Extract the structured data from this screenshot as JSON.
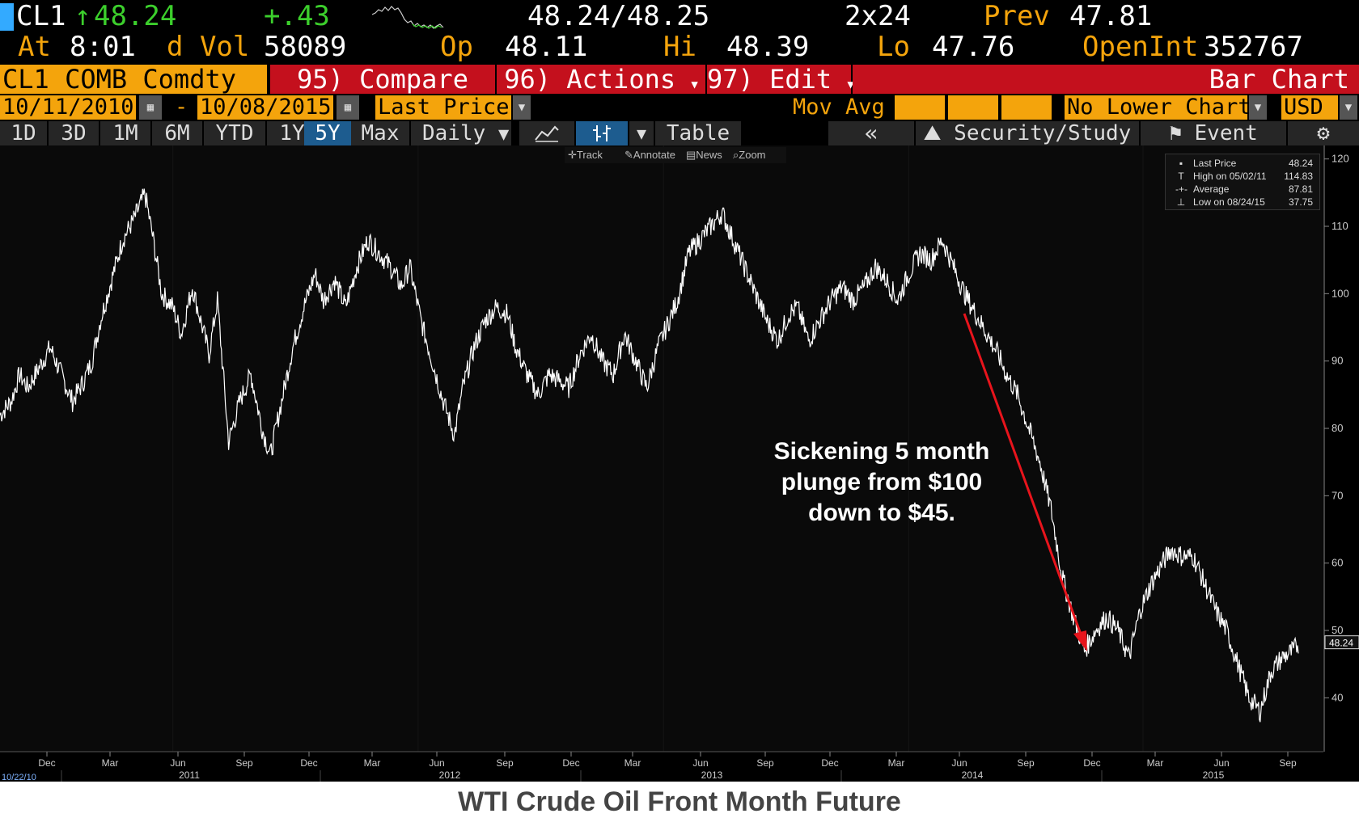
{
  "quote": {
    "ticker": "CL1",
    "arrow": "↑",
    "last": "48.24",
    "change": "+.43",
    "bid_ask": "48.24/48.25",
    "size": "2x24",
    "prev_label": "Prev",
    "prev": "47.81",
    "at_label": "At",
    "time": "8:01",
    "vol_label": "d Vol",
    "volume": "58089",
    "op_label": "Op",
    "open": "48.11",
    "hi_label": "Hi",
    "high": "48.39",
    "lo_label": "Lo",
    "low": "47.76",
    "oi_label": "OpenInt",
    "open_interest": "352767"
  },
  "menu": {
    "security": "CL1 COMB Comdty",
    "compare": "95) Compare",
    "actions": "96) Actions",
    "edit": "97) Edit",
    "chart_type": "Bar Chart"
  },
  "range": {
    "start": "10/11/2010",
    "dash": "-",
    "end": "10/08/2015",
    "field": "Last Price",
    "mov_avg": "Mov Avg",
    "lower_chart": "No Lower Chart",
    "currency": "USD"
  },
  "periods": [
    "1D",
    "3D",
    "1M",
    "6M",
    "YTD",
    "1Y",
    "5Y",
    "Max"
  ],
  "active_period": "5Y",
  "frequency": "Daily",
  "chart_tools": {
    "table": "Table",
    "back": "«",
    "security_study": "Security/Study",
    "event": "Event"
  },
  "toolbar": {
    "track": "Track",
    "annotate": "Annotate",
    "news": "News",
    "zoom": "Zoom"
  },
  "legend": [
    {
      "label": "Last Price",
      "value": "48.24"
    },
    {
      "label": "High on 05/02/11",
      "value": "114.83"
    },
    {
      "label": "Average",
      "value": "87.81"
    },
    {
      "label": "Low on 08/24/15",
      "value": "37.75"
    }
  ],
  "last_price_tag": "48.24",
  "start_date_label": "10/22/10",
  "annotation": [
    "Sickening 5 month",
    "plunge from $100",
    "down to $45."
  ],
  "footer_title": "WTI Crude Oil Front Month Future",
  "colors": {
    "amber": "#f4a40c",
    "red": "#c4101d",
    "green": "#3ccf2c",
    "arrow": "#e8141c"
  },
  "chart_data": {
    "type": "line",
    "ylim": [
      32,
      122
    ],
    "y_ticks": [
      40,
      50,
      60,
      70,
      80,
      90,
      100,
      110,
      120
    ],
    "month_ticks": [
      "Dec",
      "Mar",
      "Jun",
      "Sep",
      "Dec",
      "Mar",
      "Jun",
      "Sep",
      "Dec",
      "Mar",
      "Jun",
      "Sep",
      "Dec",
      "Mar",
      "Jun",
      "Sep",
      "Dec",
      "Mar",
      "Jun",
      "Sep"
    ],
    "year_ticks": [
      "2011",
      "2012",
      "2013",
      "2014",
      "2015"
    ],
    "series": [
      {
        "values": [
          [
            0,
            82
          ],
          [
            4,
            84
          ],
          [
            7,
            88
          ],
          [
            10,
            86
          ],
          [
            14,
            89
          ],
          [
            18,
            92
          ],
          [
            22,
            88
          ],
          [
            26,
            84
          ],
          [
            30,
            87
          ],
          [
            33,
            90
          ],
          [
            36,
            96
          ],
          [
            40,
            102
          ],
          [
            44,
            108
          ],
          [
            48,
            111
          ],
          [
            52,
            114.8
          ],
          [
            55,
            108
          ],
          [
            58,
            100
          ],
          [
            62,
            98
          ],
          [
            65,
            94
          ],
          [
            69,
            101
          ],
          [
            72,
            96
          ],
          [
            75,
            91
          ],
          [
            78,
            99
          ],
          [
            82,
            78
          ],
          [
            86,
            84
          ],
          [
            90,
            88
          ],
          [
            94,
            80
          ],
          [
            97,
            76
          ],
          [
            101,
            84
          ],
          [
            105,
            92
          ],
          [
            109,
            98
          ],
          [
            113,
            103
          ],
          [
            116,
            99
          ],
          [
            120,
            102
          ],
          [
            124,
            98
          ],
          [
            128,
            104
          ],
          [
            132,
            108
          ],
          [
            136,
            106
          ],
          [
            140,
            104
          ],
          [
            144,
            101
          ],
          [
            147,
            104
          ],
          [
            151,
            96
          ],
          [
            155,
            90
          ],
          [
            159,
            84
          ],
          [
            163,
            79
          ],
          [
            166,
            86
          ],
          [
            170,
            92
          ],
          [
            174,
            96
          ],
          [
            178,
            98
          ],
          [
            182,
            97
          ],
          [
            185,
            92
          ],
          [
            189,
            88
          ],
          [
            193,
            85
          ],
          [
            197,
            88
          ],
          [
            201,
            87
          ],
          [
            204,
            86
          ],
          [
            208,
            91
          ],
          [
            212,
            94
          ],
          [
            216,
            90
          ],
          [
            220,
            88
          ],
          [
            224,
            94
          ],
          [
            228,
            90
          ],
          [
            232,
            86
          ],
          [
            236,
            92
          ],
          [
            239,
            95
          ],
          [
            243,
            99
          ],
          [
            247,
            106
          ],
          [
            251,
            108
          ],
          [
            255,
            110
          ],
          [
            259,
            112
          ],
          [
            263,
            108
          ],
          [
            267,
            104
          ],
          [
            271,
            100
          ],
          [
            275,
            96
          ],
          [
            279,
            93
          ],
          [
            283,
            97
          ],
          [
            286,
            98
          ],
          [
            290,
            93
          ],
          [
            294,
            96
          ],
          [
            298,
            99
          ],
          [
            302,
            101
          ],
          [
            306,
            99
          ],
          [
            310,
            101
          ],
          [
            314,
            104
          ],
          [
            318,
            102
          ],
          [
            322,
            99
          ],
          [
            326,
            103
          ],
          [
            330,
            106
          ],
          [
            334,
            105
          ],
          [
            338,
            108
          ],
          [
            342,
            104
          ],
          [
            346,
            100
          ],
          [
            350,
            97
          ],
          [
            354,
            94
          ],
          [
            358,
            91
          ],
          [
            361,
            88
          ],
          [
            365,
            85
          ],
          [
            369,
            80
          ],
          [
            373,
            75
          ],
          [
            377,
            68
          ],
          [
            381,
            58
          ],
          [
            385,
            52
          ],
          [
            389,
            47
          ],
          [
            393,
            50
          ],
          [
            397,
            52
          ],
          [
            401,
            50
          ],
          [
            405,
            46
          ],
          [
            409,
            53
          ],
          [
            413,
            57
          ],
          [
            417,
            60
          ],
          [
            420,
            62
          ],
          [
            424,
            61
          ],
          [
            428,
            61
          ],
          [
            432,
            57
          ],
          [
            436,
            53
          ],
          [
            440,
            50
          ],
          [
            444,
            45
          ],
          [
            448,
            40
          ],
          [
            452,
            38
          ],
          [
            456,
            44
          ],
          [
            460,
            46
          ],
          [
            464,
            47
          ],
          [
            466,
            48.24
          ]
        ]
      }
    ]
  }
}
